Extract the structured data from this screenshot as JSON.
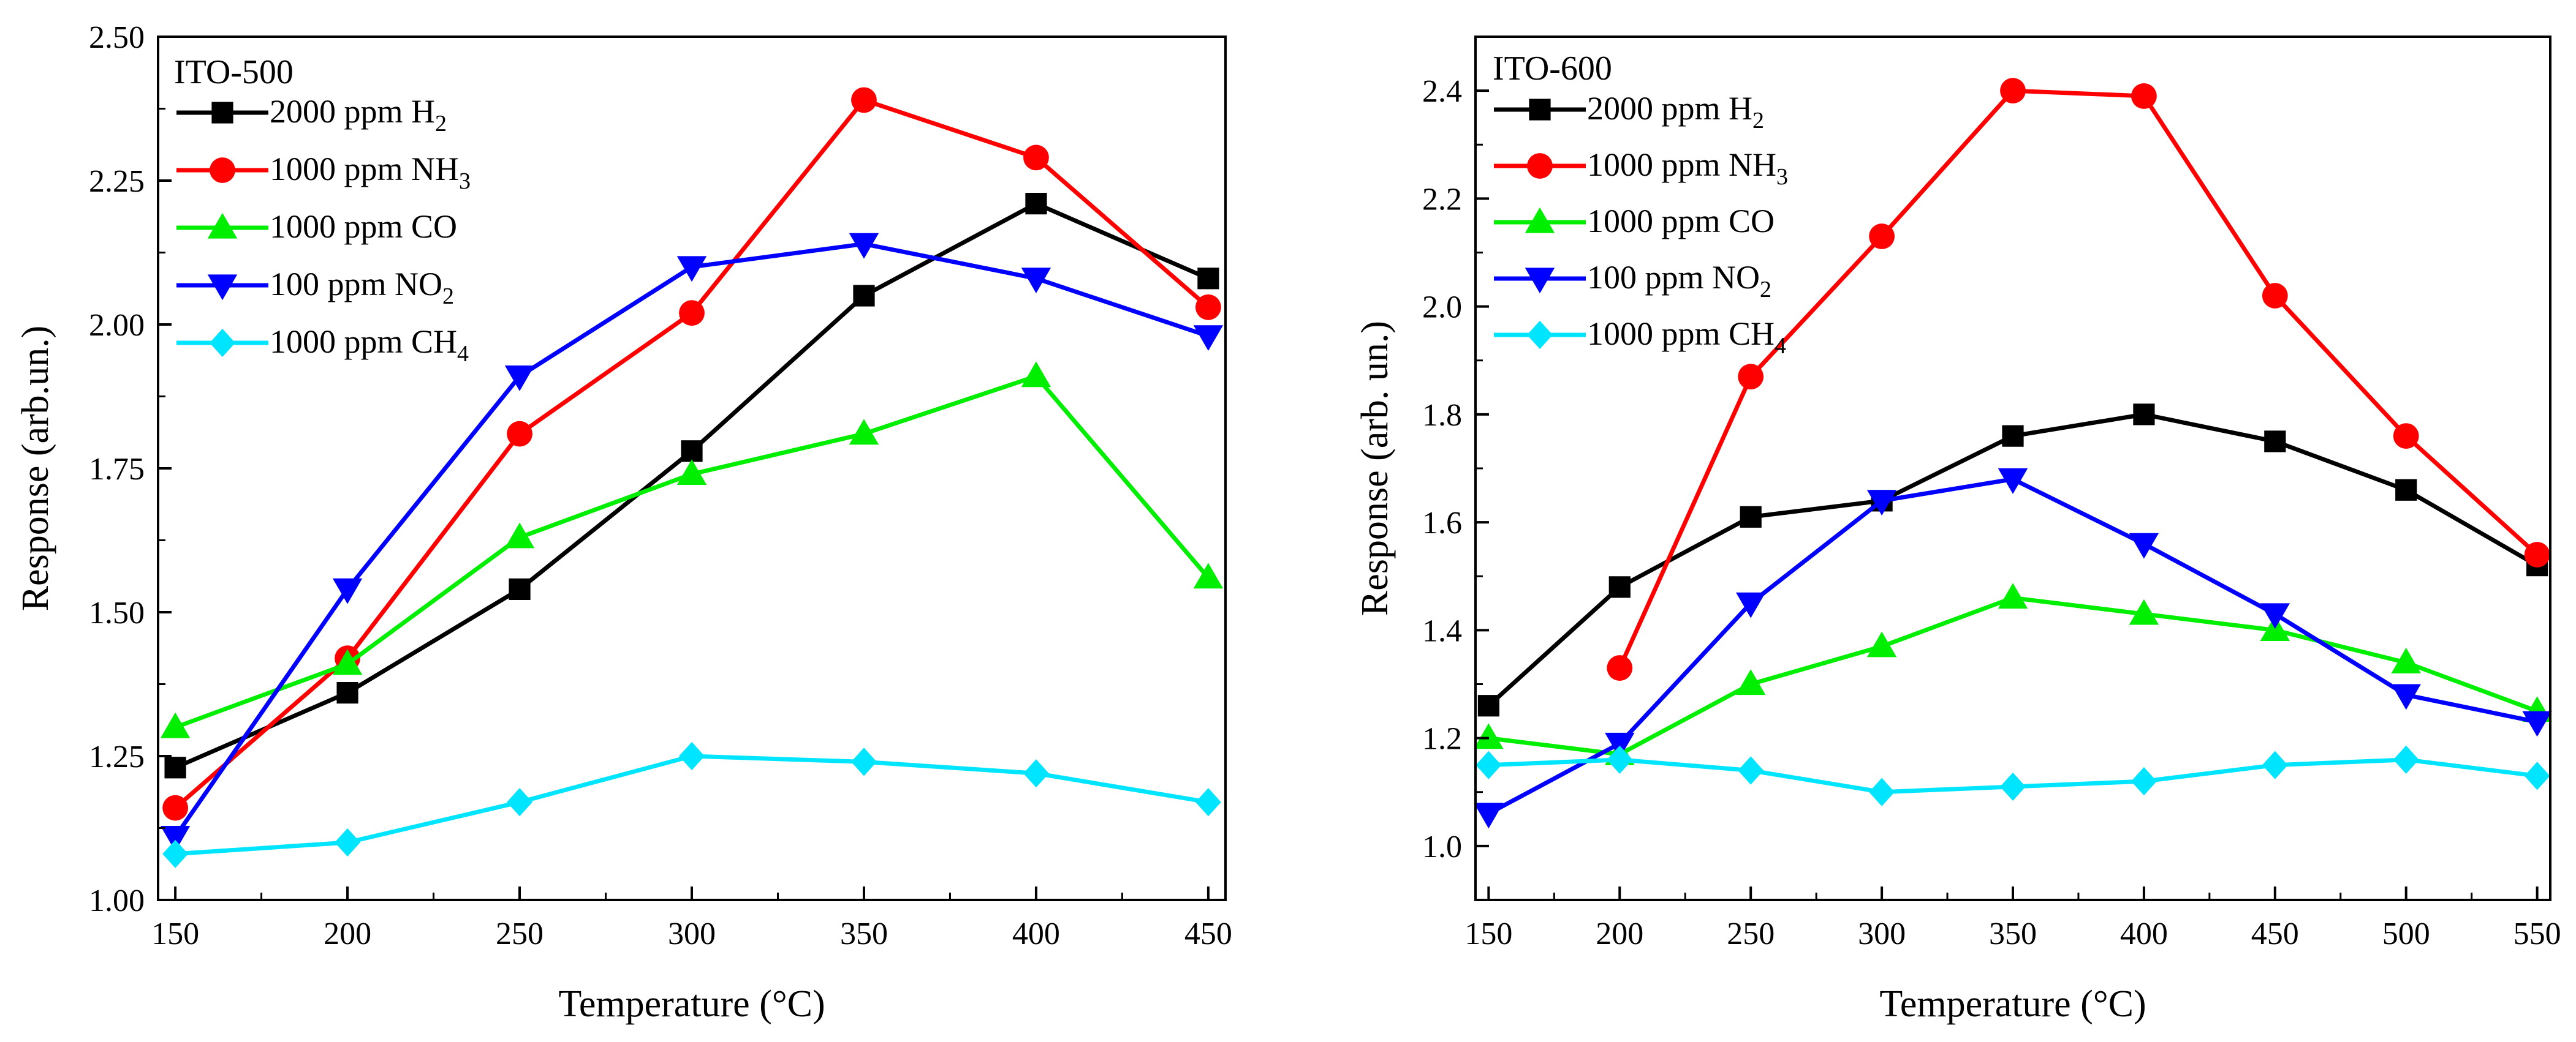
{
  "chart_data": [
    {
      "type": "line",
      "panel_label": "ITO-500",
      "xlabel": "Temperature (°C)",
      "ylabel": "Response (arb.un.)",
      "xlim": [
        145,
        455
      ],
      "ylim": [
        1.0,
        2.5
      ],
      "xticks": [
        150,
        200,
        250,
        300,
        350,
        400,
        450
      ],
      "xtick_labels": [
        "150",
        "200",
        "250",
        "300",
        "350",
        "400",
        "450"
      ],
      "yticks": [
        1.0,
        1.25,
        1.5,
        1.75,
        2.0,
        2.25,
        2.5
      ],
      "ytick_labels": [
        "1.00",
        "1.25",
        "1.50",
        "1.75",
        "2.00",
        "2.25",
        "2.50"
      ],
      "grid": false,
      "legend_position": "top-left",
      "x": [
        150,
        200,
        250,
        300,
        350,
        400,
        450
      ],
      "series": [
        {
          "name": "2000 ppm H2",
          "label_main": "2000 ppm H",
          "label_sub": "2",
          "color": "#000000",
          "marker": "square",
          "values": [
            1.23,
            1.36,
            1.54,
            1.78,
            2.05,
            2.21,
            2.08
          ]
        },
        {
          "name": "1000 ppm NH3",
          "label_main": "1000 ppm NH",
          "label_sub": "3",
          "color": "#ff0000",
          "marker": "circle",
          "values": [
            1.16,
            1.42,
            1.81,
            2.02,
            2.39,
            2.29,
            2.03
          ]
        },
        {
          "name": "1000 ppm CO",
          "label_main": "1000 ppm CO",
          "label_sub": "",
          "color": "#00ee00",
          "marker": "triangle-up",
          "values": [
            1.3,
            1.41,
            1.63,
            1.74,
            1.81,
            1.91,
            1.56
          ]
        },
        {
          "name": "100 ppm NO2",
          "label_main": "100 ppm NO",
          "label_sub": "2",
          "color": "#0000ff",
          "marker": "triangle-down",
          "values": [
            1.11,
            1.54,
            1.91,
            2.1,
            2.14,
            2.08,
            1.98
          ]
        },
        {
          "name": "1000 ppm CH4",
          "label_main": "1000 ppm CH",
          "label_sub": "4",
          "color": "#00e5ff",
          "marker": "diamond",
          "values": [
            1.08,
            1.1,
            1.17,
            1.25,
            1.24,
            1.22,
            1.17
          ]
        }
      ]
    },
    {
      "type": "line",
      "panel_label": "ITO-600",
      "xlabel": "Temperature (°C)",
      "ylabel": "Response (arb. un.)",
      "xlim": [
        145,
        555
      ],
      "ylim": [
        0.9,
        2.5
      ],
      "xticks": [
        150,
        200,
        250,
        300,
        350,
        400,
        450,
        500,
        550
      ],
      "xtick_labels": [
        "150",
        "200",
        "250",
        "300",
        "350",
        "400",
        "450",
        "500",
        "550"
      ],
      "yticks": [
        1.0,
        1.2,
        1.4,
        1.6,
        1.8,
        2.0,
        2.2,
        2.4
      ],
      "ytick_labels": [
        "1.0",
        "1.2",
        "1.4",
        "1.6",
        "1.8",
        "2.0",
        "2.2",
        "2.4"
      ],
      "grid": false,
      "legend_position": "top-left",
      "series": [
        {
          "name": "2000 ppm H2",
          "label_main": "2000 ppm H",
          "label_sub": "2",
          "color": "#000000",
          "marker": "square",
          "x": [
            150,
            200,
            250,
            300,
            350,
            400,
            450,
            500,
            550
          ],
          "values": [
            1.26,
            1.48,
            1.61,
            1.64,
            1.76,
            1.8,
            1.75,
            1.66,
            1.52
          ]
        },
        {
          "name": "1000 ppm NH3",
          "label_main": "1000 ppm NH",
          "label_sub": "3",
          "color": "#ff0000",
          "marker": "circle",
          "x": [
            200,
            250,
            300,
            350,
            400,
            450,
            500,
            550
          ],
          "values": [
            1.33,
            1.87,
            2.13,
            2.4,
            2.39,
            2.02,
            1.76,
            1.54
          ]
        },
        {
          "name": "1000 ppm CO",
          "label_main": "1000 ppm CO",
          "label_sub": "",
          "color": "#00ee00",
          "marker": "triangle-up",
          "x": [
            150,
            200,
            250,
            300,
            350,
            400,
            450,
            500,
            550
          ],
          "values": [
            1.2,
            1.17,
            1.3,
            1.37,
            1.46,
            1.43,
            1.4,
            1.34,
            1.25
          ]
        },
        {
          "name": "100 ppm NO2",
          "label_main": "100 ppm NO",
          "label_sub": "2",
          "color": "#0000ff",
          "marker": "triangle-down",
          "x": [
            150,
            200,
            250,
            300,
            350,
            400,
            450,
            500,
            550
          ],
          "values": [
            1.06,
            1.19,
            1.45,
            1.64,
            1.68,
            1.56,
            1.43,
            1.28,
            1.23
          ]
        },
        {
          "name": "1000 ppm CH4",
          "label_main": "1000 ppm CH",
          "label_sub": "4",
          "color": "#00e5ff",
          "marker": "diamond",
          "x": [
            150,
            200,
            250,
            300,
            350,
            400,
            450,
            500,
            550
          ],
          "values": [
            1.15,
            1.16,
            1.14,
            1.1,
            1.11,
            1.12,
            1.15,
            1.16,
            1.13
          ]
        }
      ]
    }
  ]
}
